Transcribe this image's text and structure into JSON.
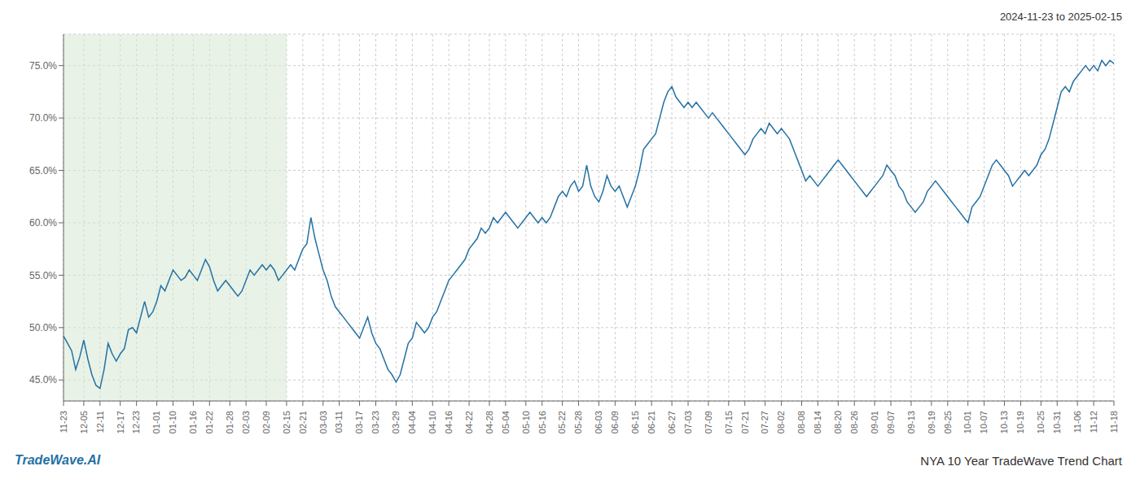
{
  "chart_data": {
    "type": "line",
    "title": "NYA 10 Year TradeWave Trend Chart",
    "subtitle": "2024-11-23 to 2025-02-15",
    "annotations": [
      {
        "text": "TradeWave.AI",
        "color": "#2471A3"
      }
    ],
    "color": "#2471A3",
    "grid": true,
    "highlight": {
      "start": "11-23",
      "end": "02-15",
      "color": "#d5e8d4"
    },
    "ylim": [
      43.0,
      78.0
    ],
    "yticks": [
      {
        "value": 45.0,
        "label": "45.0%"
      },
      {
        "value": 50.0,
        "label": "50.0%"
      },
      {
        "value": 55.0,
        "label": "55.0%"
      },
      {
        "value": 60.0,
        "label": "60.0%"
      },
      {
        "value": 65.0,
        "label": "65.0%"
      },
      {
        "value": 70.0,
        "label": "70.0%"
      },
      {
        "value": 75.0,
        "label": "75.0%"
      }
    ],
    "categories": [
      "11-23",
      null,
      null,
      null,
      null,
      "12-05",
      null,
      null,
      null,
      "12-11",
      null,
      null,
      null,
      null,
      "12-17",
      null,
      null,
      null,
      "12-23",
      null,
      null,
      null,
      null,
      "01-01",
      null,
      null,
      null,
      "01-10",
      null,
      null,
      null,
      null,
      "01-16",
      null,
      null,
      null,
      "01-22",
      null,
      null,
      null,
      null,
      "01-28",
      null,
      null,
      null,
      "02-03",
      null,
      null,
      null,
      null,
      "02-09",
      null,
      null,
      null,
      null,
      "02-15",
      null,
      null,
      null,
      "02-21",
      null,
      null,
      null,
      null,
      "03-03",
      null,
      null,
      null,
      "03-11",
      null,
      null,
      null,
      null,
      "03-17",
      null,
      null,
      null,
      "03-23",
      null,
      null,
      null,
      null,
      "03-29",
      null,
      null,
      null,
      "04-04",
      null,
      null,
      null,
      null,
      "04-10",
      null,
      null,
      null,
      "04-16",
      null,
      null,
      null,
      null,
      "04-22",
      null,
      null,
      null,
      null,
      "04-28",
      null,
      null,
      null,
      "05-04",
      null,
      null,
      null,
      null,
      "05-10",
      null,
      null,
      null,
      "05-16",
      null,
      null,
      null,
      null,
      "05-22",
      null,
      null,
      null,
      "05-28",
      null,
      null,
      null,
      null,
      "06-03",
      null,
      null,
      null,
      "06-09",
      null,
      null,
      null,
      null,
      "06-15",
      null,
      null,
      null,
      "06-21",
      null,
      null,
      null,
      null,
      "06-27",
      null,
      null,
      null,
      "07-03",
      null,
      null,
      null,
      null,
      "07-09",
      null,
      null,
      null,
      null,
      "07-15",
      null,
      null,
      null,
      "07-21",
      null,
      null,
      null,
      null,
      "07-27",
      null,
      null,
      null,
      "08-02",
      null,
      null,
      null,
      null,
      "08-08",
      null,
      null,
      null,
      "08-14",
      null,
      null,
      null,
      null,
      "08-20",
      null,
      null,
      null,
      "08-26",
      null,
      null,
      null,
      null,
      "09-01",
      null,
      null,
      null,
      "09-07",
      null,
      null,
      null,
      null,
      "09-13",
      null,
      null,
      null,
      null,
      "09-19",
      null,
      null,
      null,
      "09-25",
      null,
      null,
      null,
      null,
      "10-01",
      null,
      null,
      null,
      "10-07",
      null,
      null,
      null,
      null,
      "10-13",
      null,
      null,
      null,
      "10-19",
      null,
      null,
      null,
      null,
      "10-25",
      null,
      null,
      null,
      "10-31",
      null,
      null,
      null,
      null,
      "11-06",
      null,
      null,
      null,
      "11-12",
      null,
      null,
      null,
      null,
      "11-18"
    ],
    "values": [
      49.2,
      48.5,
      47.8,
      46.0,
      47.2,
      48.8,
      47.0,
      45.5,
      44.5,
      44.2,
      46.0,
      48.5,
      47.5,
      46.8,
      47.5,
      48.0,
      49.8,
      50.0,
      49.5,
      51.0,
      52.5,
      51.0,
      51.5,
      52.5,
      54.0,
      53.5,
      54.5,
      55.5,
      55.0,
      54.5,
      54.8,
      55.5,
      55.0,
      54.5,
      55.5,
      56.5,
      55.8,
      54.5,
      53.5,
      54.0,
      54.5,
      54.0,
      53.5,
      53.0,
      53.5,
      54.5,
      55.5,
      55.0,
      55.5,
      56.0,
      55.5,
      56.0,
      55.5,
      54.5,
      55.0,
      55.5,
      56.0,
      55.5,
      56.5,
      57.5,
      58.0,
      60.5,
      58.5,
      57.0,
      55.5,
      54.5,
      53.0,
      52.0,
      51.5,
      51.0,
      50.5,
      50.0,
      49.5,
      49.0,
      50.0,
      51.0,
      49.5,
      48.5,
      48.0,
      47.0,
      46.0,
      45.5,
      44.8,
      45.5,
      47.0,
      48.5,
      49.0,
      50.5,
      50.0,
      49.5,
      50.0,
      51.0,
      51.5,
      52.5,
      53.5,
      54.5,
      55.0,
      55.5,
      56.0,
      56.5,
      57.5,
      58.0,
      58.5,
      59.5,
      59.0,
      59.5,
      60.5,
      60.0,
      60.5,
      61.0,
      60.5,
      60.0,
      59.5,
      60.0,
      60.5,
      61.0,
      60.5,
      60.0,
      60.5,
      60.0,
      60.5,
      61.5,
      62.5,
      63.0,
      62.5,
      63.5,
      64.0,
      63.0,
      63.5,
      65.5,
      63.5,
      62.5,
      62.0,
      63.0,
      64.5,
      63.5,
      63.0,
      63.5,
      62.5,
      61.5,
      62.5,
      63.5,
      65.0,
      67.0,
      67.5,
      68.0,
      68.5,
      70.0,
      71.5,
      72.5,
      73.0,
      72.0,
      71.5,
      71.0,
      71.5,
      71.0,
      71.5,
      71.0,
      70.5,
      70.0,
      70.5,
      70.0,
      69.5,
      69.0,
      68.5,
      68.0,
      67.5,
      67.0,
      66.5,
      67.0,
      68.0,
      68.5,
      69.0,
      68.5,
      69.5,
      69.0,
      68.5,
      69.0,
      68.5,
      68.0,
      67.0,
      66.0,
      65.0,
      64.0,
      64.5,
      64.0,
      63.5,
      64.0,
      64.5,
      65.0,
      65.5,
      66.0,
      65.5,
      65.0,
      64.5,
      64.0,
      63.5,
      63.0,
      62.5,
      63.0,
      63.5,
      64.0,
      64.5,
      65.5,
      65.0,
      64.5,
      63.5,
      63.0,
      62.0,
      61.5,
      61.0,
      61.5,
      62.0,
      63.0,
      63.5,
      64.0,
      63.5,
      63.0,
      62.5,
      62.0,
      61.5,
      61.0,
      60.5,
      60.0,
      61.5,
      62.0,
      62.5,
      63.5,
      64.5,
      65.5,
      66.0,
      65.5,
      65.0,
      64.5,
      63.5,
      64.0,
      64.5,
      65.0,
      64.5,
      65.0,
      65.5,
      66.5,
      67.0,
      68.0,
      69.5,
      71.0,
      72.5,
      73.0,
      72.5,
      73.5,
      74.0,
      74.5,
      75.0,
      74.5,
      75.0,
      74.5,
      75.5,
      75.0,
      75.5,
      75.2
    ]
  }
}
